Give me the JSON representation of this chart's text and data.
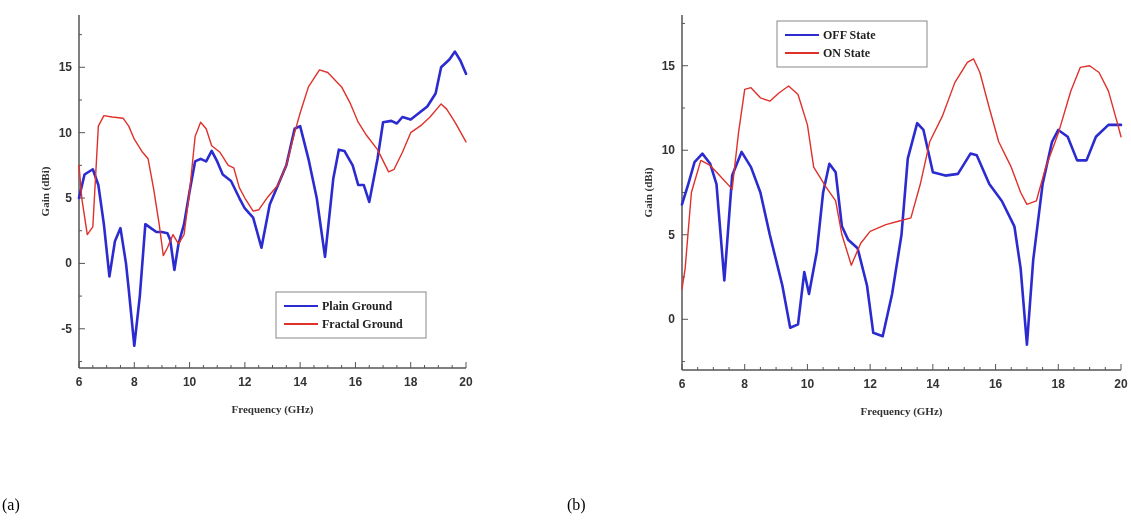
{
  "chart_data": [
    {
      "type": "line",
      "xlabel": "Frequency (GHz)",
      "ylabel": "Gain (dBi)",
      "annotations": [
        "(a)"
      ],
      "xlim": [
        6,
        20
      ],
      "ylim": [
        -8,
        19
      ],
      "xticks": [
        6,
        8,
        10,
        12,
        14,
        16,
        18,
        20
      ],
      "yticks": [
        -5,
        0,
        5,
        10,
        15
      ],
      "grid": false,
      "legend": "bottom right",
      "line_style": "solid",
      "series": [
        {
          "name": "Plain Ground",
          "color": "#2b2bd0",
          "x": [
            6,
            6.2,
            6.5,
            6.7,
            6.9,
            7.1,
            7.3,
            7.5,
            7.7,
            7.8,
            8,
            8.2,
            8.4,
            8.6,
            8.8,
            9,
            9.2,
            9.3,
            9.45,
            9.6,
            9.8,
            10,
            10.2,
            10.4,
            10.6,
            10.8,
            11,
            11.2,
            11.5,
            11.8,
            12,
            12.3,
            12.6,
            12.9,
            13.2,
            13.5,
            13.8,
            14,
            14.3,
            14.6,
            14.9,
            15.2,
            15.4,
            15.6,
            15.9,
            16.1,
            16.3,
            16.5,
            16.8,
            17,
            17.3,
            17.5,
            17.7,
            18,
            18.3,
            18.6,
            18.9,
            19.1,
            19.4,
            19.6,
            19.8,
            20
          ],
          "values": [
            5,
            6.8,
            7.2,
            6,
            3,
            -1,
            1.7,
            2.7,
            0,
            -2,
            -6.3,
            -2.5,
            3,
            2.7,
            2.4,
            2.4,
            2.3,
            1.8,
            -0.5,
            1.5,
            3,
            5.5,
            7.8,
            8,
            7.8,
            8.6,
            7.8,
            6.8,
            6.3,
            5,
            4.2,
            3.5,
            1.2,
            4.5,
            6,
            7.5,
            10.3,
            10.5,
            8,
            5,
            0.5,
            6.5,
            8.7,
            8.6,
            7.5,
            6,
            6,
            4.7,
            8,
            10.8,
            10.9,
            10.7,
            11.2,
            11,
            11.5,
            12,
            13,
            15,
            15.6,
            16.2,
            15.5,
            14.5
          ]
        },
        {
          "name": "Fractal Ground",
          "color": "#e0302a",
          "x": [
            6,
            6.1,
            6.3,
            6.5,
            6.7,
            6.9,
            7.2,
            7.6,
            7.8,
            8,
            8.3,
            8.5,
            8.7,
            8.9,
            9.05,
            9.2,
            9.4,
            9.6,
            9.8,
            10,
            10.2,
            10.4,
            10.6,
            10.8,
            11.1,
            11.4,
            11.6,
            11.8,
            12,
            12.3,
            12.5,
            12.8,
            13.2,
            13.5,
            13.8,
            14,
            14.3,
            14.7,
            15,
            15.5,
            15.8,
            16.1,
            16.4,
            16.8,
            17.2,
            17.4,
            17.7,
            18,
            18.4,
            18.7,
            19.1,
            19.3,
            19.6,
            20
          ],
          "values": [
            7.5,
            5,
            2.2,
            2.8,
            10.5,
            11.3,
            11.2,
            11.1,
            10.5,
            9.5,
            8.5,
            8,
            5.7,
            3,
            0.6,
            1.2,
            2.2,
            1.5,
            2.2,
            5.5,
            9.7,
            10.8,
            10.3,
            9,
            8.5,
            7.5,
            7.3,
            5.8,
            5,
            4,
            4.1,
            5,
            6,
            7.5,
            10,
            11.5,
            13.5,
            14.8,
            14.6,
            13.5,
            12.3,
            10.8,
            9.8,
            8.7,
            7,
            7.2,
            8.5,
            10,
            10.6,
            11.2,
            12.2,
            11.8,
            10.8,
            9.3
          ]
        }
      ]
    },
    {
      "type": "line",
      "xlabel": "Frequency (GHz)",
      "ylabel": "Gain (dBi)",
      "annotations": [
        "(b)"
      ],
      "xlim": [
        6,
        20
      ],
      "ylim": [
        -3,
        18
      ],
      "xticks": [
        6,
        8,
        10,
        12,
        14,
        16,
        18,
        20
      ],
      "yticks": [
        0,
        5,
        10,
        15
      ],
      "grid": false,
      "legend": "top",
      "line_style": "solid",
      "series": [
        {
          "name": "OFF State",
          "color": "#2b2bd0",
          "x": [
            6,
            6.2,
            6.4,
            6.65,
            6.9,
            7.1,
            7.35,
            7.6,
            7.9,
            8.2,
            8.5,
            8.8,
            9.2,
            9.45,
            9.7,
            9.9,
            10.05,
            10.3,
            10.5,
            10.7,
            10.9,
            11.1,
            11.3,
            11.6,
            11.9,
            12.1,
            12.4,
            12.7,
            13,
            13.2,
            13.5,
            13.7,
            14,
            14.4,
            14.8,
            15.2,
            15.4,
            15.8,
            16.2,
            16.6,
            16.8,
            17,
            17.2,
            17.5,
            17.8,
            18,
            18.3,
            18.6,
            18.9,
            19.2,
            19.6,
            20
          ],
          "values": [
            6.8,
            8,
            9.3,
            9.8,
            9.2,
            8,
            2.3,
            8.5,
            9.9,
            9,
            7.5,
            5,
            2,
            -0.5,
            -0.3,
            2.8,
            1.5,
            4,
            7.5,
            9.2,
            8.7,
            5.5,
            4.7,
            4.2,
            2,
            -0.8,
            -1,
            1.5,
            5,
            9.5,
            11.6,
            11.2,
            8.7,
            8.5,
            8.6,
            9.8,
            9.7,
            8,
            7,
            5.5,
            3,
            -1.5,
            3.5,
            8,
            10.5,
            11.2,
            10.8,
            9.4,
            9.4,
            10.8,
            11.5,
            11.5
          ]
        },
        {
          "name": "ON State",
          "color": "#e0302a",
          "x": [
            6,
            6.1,
            6.3,
            6.6,
            6.9,
            7.2,
            7.6,
            7.8,
            8,
            8.2,
            8.5,
            8.8,
            9.1,
            9.4,
            9.7,
            10,
            10.2,
            10.6,
            10.9,
            11.1,
            11.4,
            11.7,
            12,
            12.5,
            12.9,
            13.3,
            13.6,
            13.9,
            14.3,
            14.7,
            15.1,
            15.3,
            15.5,
            15.8,
            16.1,
            16.5,
            16.8,
            17,
            17.3,
            17.6,
            18,
            18.4,
            18.7,
            19,
            19.3,
            19.6,
            19.9,
            20
          ],
          "values": [
            1.8,
            3,
            7.5,
            9.4,
            9.1,
            8.5,
            7.7,
            11,
            13.6,
            13.7,
            13.1,
            12.9,
            13.4,
            13.8,
            13.3,
            11.5,
            9,
            7.8,
            7,
            5,
            3.2,
            4.5,
            5.2,
            5.6,
            5.8,
            6,
            8,
            10.5,
            12,
            14,
            15.2,
            15.4,
            14.6,
            12.5,
            10.5,
            9,
            7.5,
            6.8,
            7,
            9,
            11,
            13.5,
            14.9,
            15,
            14.6,
            13.5,
            11.5,
            10.8
          ]
        }
      ]
    }
  ]
}
